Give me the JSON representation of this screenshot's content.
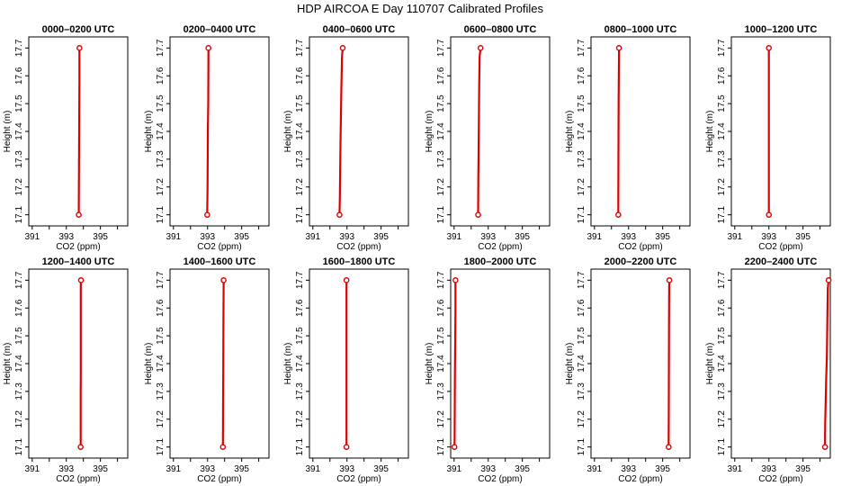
{
  "title": "HDP AIRCOA E  Day 110707  Calibrated Profiles",
  "colors": {
    "profile": "#dd0000",
    "frame": "#000000"
  },
  "chart_data": {
    "type": "line",
    "xlabel": "CO2 (ppm)",
    "ylabel": "Height (m)",
    "xlim": [
      390.8,
      396.6
    ],
    "ylim": [
      17.06,
      17.74
    ],
    "xticks": [
      "391",
      "393",
      "395"
    ],
    "yticks": [
      "17.1",
      "17.2",
      "17.3",
      "17.4",
      "17.5",
      "17.6",
      "17.7"
    ],
    "panels": [
      {
        "title": "0000–0200 UTC",
        "x": [
          393.73,
          393.73,
          393.74,
          393.76,
          393.77,
          393.77
        ],
        "y": [
          17.1,
          17.13,
          17.26,
          17.47,
          17.59,
          17.7
        ]
      },
      {
        "title": "0200–0400 UTC",
        "x": [
          392.98,
          393.0,
          393.02,
          393.04,
          393.05,
          393.05
        ],
        "y": [
          17.1,
          17.19,
          17.41,
          17.5,
          17.68,
          17.7
        ]
      },
      {
        "title": "0400–0600 UTC",
        "x": [
          392.56,
          392.58,
          392.62,
          392.67,
          392.71,
          392.75
        ],
        "y": [
          17.1,
          17.16,
          17.36,
          17.56,
          17.67,
          17.7
        ]
      },
      {
        "title": "0600–0800 UTC",
        "x": [
          392.41,
          392.42,
          392.44,
          392.47,
          392.5,
          392.55
        ],
        "y": [
          17.1,
          17.22,
          17.35,
          17.57,
          17.67,
          17.7
        ]
      },
      {
        "title": "0800–1000 UTC",
        "x": [
          392.4,
          392.41,
          392.42,
          392.43,
          392.44,
          392.44
        ],
        "y": [
          17.1,
          17.33,
          17.51,
          17.6,
          17.68,
          17.7
        ]
      },
      {
        "title": "1000–1200 UTC",
        "x": [
          393.0,
          393.0,
          393.0,
          393.0,
          393.0,
          393.0
        ],
        "y": [
          17.1,
          17.33,
          17.52,
          17.6,
          17.68,
          17.7
        ]
      },
      {
        "title": "1200–1400 UTC",
        "x": [
          393.84,
          393.84,
          393.85,
          393.85,
          393.85,
          393.86
        ],
        "y": [
          17.1,
          17.3,
          17.35,
          17.5,
          17.68,
          17.7
        ]
      },
      {
        "title": "1400–1600 UTC",
        "x": [
          393.9,
          393.91,
          393.92,
          393.93,
          393.94,
          393.94
        ],
        "y": [
          17.1,
          17.26,
          17.38,
          17.57,
          17.68,
          17.7
        ]
      },
      {
        "title": "1600–1800 UTC",
        "x": [
          392.97,
          392.97,
          392.97,
          392.97,
          392.97,
          392.97
        ],
        "y": [
          17.1,
          17.3,
          17.5,
          17.6,
          17.68,
          17.7
        ]
      },
      {
        "title": "1800–2000 UTC",
        "x": [
          391.02,
          391.03,
          391.05,
          391.08,
          391.08,
          391.08
        ],
        "y": [
          17.1,
          17.13,
          17.35,
          17.59,
          17.68,
          17.7
        ]
      },
      {
        "title": "2000–2200 UTC",
        "x": [
          395.35,
          395.36,
          395.37,
          395.38,
          395.39,
          395.39
        ],
        "y": [
          17.1,
          17.27,
          17.52,
          17.68,
          17.69,
          17.7
        ]
      },
      {
        "title": "2200–2400 UTC",
        "x": [
          396.29,
          396.3,
          396.35,
          396.4,
          396.45,
          396.5
        ],
        "y": [
          17.1,
          17.18,
          17.33,
          17.43,
          17.67,
          17.7
        ]
      }
    ]
  }
}
